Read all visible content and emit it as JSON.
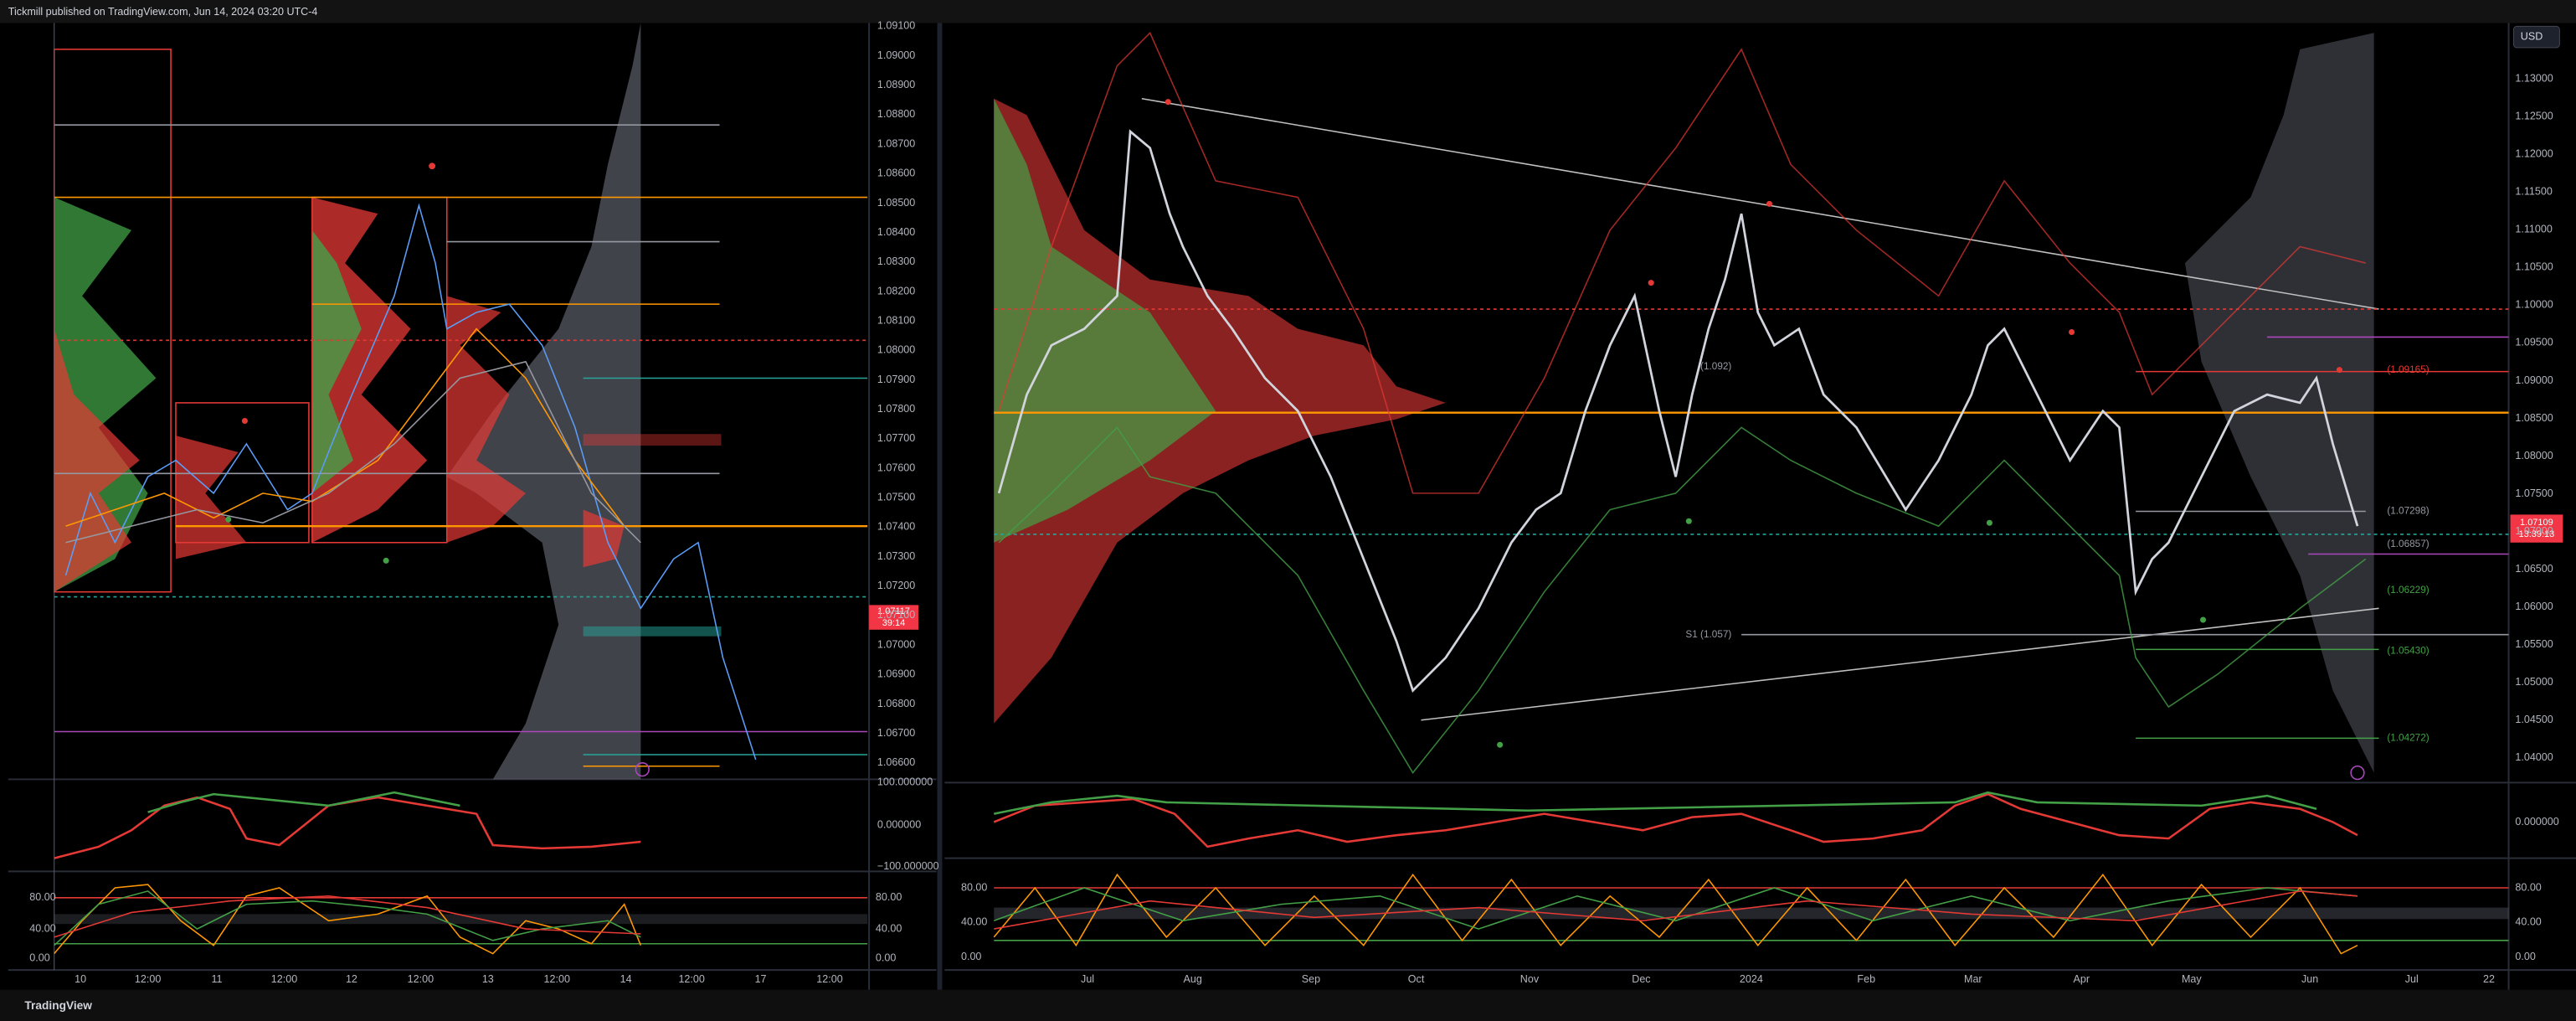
{
  "header": {
    "title": "Tickmill published on TradingView.com, Jun 14, 2024 03:20 UTC-4"
  },
  "left_chart": {
    "price_axis": [
      "1.09100",
      "1.09000",
      "1.08900",
      "1.08800",
      "1.08700",
      "1.08600",
      "1.08500",
      "1.08400",
      "1.08300",
      "1.08200",
      "1.08100",
      "1.08000",
      "1.07900",
      "1.07800",
      "1.07700",
      "1.07600",
      "1.07500",
      "1.07400",
      "1.07300",
      "1.07200",
      "1.07100",
      "1.07000",
      "1.06900",
      "1.06800",
      "1.06700",
      "1.06600"
    ],
    "osc_axis": [
      "100.000000",
      "0.000000",
      "−100.000000"
    ],
    "stoch_axis": [
      "80.00",
      "40.00",
      "0.00"
    ],
    "time_axis": [
      "10",
      "12:00",
      "11",
      "12:00",
      "12",
      "12:00",
      "13",
      "12:00",
      "14",
      "12:00",
      "17",
      "12:00"
    ],
    "last_price": "1.07117",
    "countdown": "39:14"
  },
  "right_chart": {
    "currency": "USD",
    "price_axis": [
      "1.13000",
      "1.12500",
      "1.12000",
      "1.11500",
      "1.11000",
      "1.10500",
      "1.10000",
      "1.09500",
      "1.09000",
      "1.08500",
      "1.08000",
      "1.07500",
      "1.07000",
      "1.06500",
      "1.06000",
      "1.05500",
      "1.05000",
      "1.04500",
      "1.04000"
    ],
    "osc_axis": [
      "0.000000"
    ],
    "stoch_axis": [
      "80.00",
      "40.00",
      "0.00"
    ],
    "time_axis": [
      "Jul",
      "Aug",
      "Sep",
      "Oct",
      "Nov",
      "Dec",
      "2024",
      "Feb",
      "Mar",
      "Apr",
      "May",
      "Jun",
      "Jul",
      "22"
    ],
    "last_price": "1.07109",
    "countdown": "13:39:13",
    "levels": [
      "(1.09165)",
      "(1.092)",
      "(1.07298)",
      "(1.06857)",
      "(1.06229)",
      "(1.05430)",
      "(1.04272)",
      "S1 (1.057)"
    ]
  },
  "footer": {
    "brand": "TradingView"
  }
}
